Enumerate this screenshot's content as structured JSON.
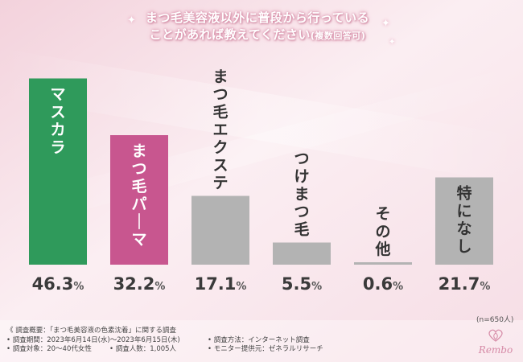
{
  "title": {
    "line1": "まつ毛美容液以外に普段から行っている",
    "line2_main": "ことがあれば教えてください",
    "line2_note": "(複数回答可)"
  },
  "colors": {
    "green": "#2f9a5b",
    "pink": "#c8568f",
    "gray": "#b3b3b3",
    "value_text": "#3a3a3a",
    "pct_text": "#555555"
  },
  "chart_data": {
    "type": "bar",
    "title": "まつ毛美容液以外に普段から行っていることがあれば教えてください(複数回答可)",
    "categories": [
      "マスカラ",
      "まつ毛パーマ",
      "まつ毛エクステ",
      "つけまつ毛",
      "その他",
      "特になし"
    ],
    "values": [
      46.3,
      32.2,
      17.1,
      5.5,
      0.6,
      21.7
    ],
    "value_labels": [
      {
        "num": "46.3",
        "unit": "%"
      },
      {
        "num": "32.2",
        "unit": "%"
      },
      {
        "num": "17.1",
        "unit": "%"
      },
      {
        "num": "5.5",
        "unit": "%"
      },
      {
        "num": "0.6",
        "unit": "%"
      },
      {
        "num": "21.7",
        "unit": "%"
      }
    ],
    "bar_colors": [
      "#2f9a5b",
      "#c8568f",
      "#b3b3b3",
      "#b3b3b3",
      "#b3b3b3",
      "#b3b3b3"
    ],
    "label_color": [
      "#ffffff",
      "#ffffff",
      "#333333",
      "#333333",
      "#333333",
      "#333333"
    ],
    "ylim": [
      0,
      50
    ],
    "grid": false,
    "legend": "none"
  },
  "sample_note": "(n=650人)",
  "survey": {
    "overview": "《 調査概要：「まつ毛美容液の色素沈着」に関する調査",
    "period": "• 調査期間：2023年6月14日(水)〜2023年6月15日(木)",
    "method": "• 調査方法：インターネット調査",
    "target": "• 調査対象：20〜40代女性",
    "count": "• 調査人数：1,005人",
    "provider": "• モニター提供元：ゼネラルリサーチ"
  },
  "logo": {
    "text": "Rembo",
    "icon": "heart-lotus-icon"
  }
}
